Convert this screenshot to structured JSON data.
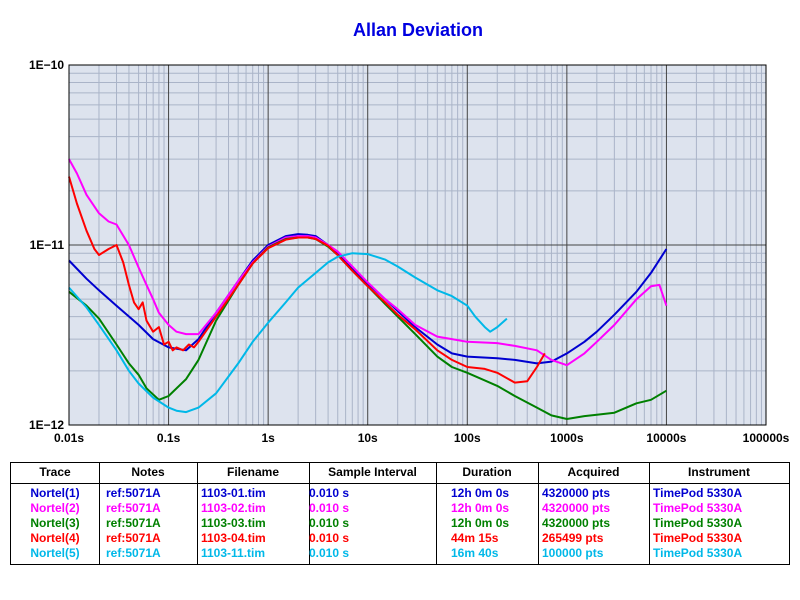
{
  "chart_data": {
    "type": "line",
    "title": "Allan Deviation",
    "x_scale": "log",
    "y_scale": "log",
    "xlim": [
      0.01,
      100000
    ],
    "ylim": [
      1e-12,
      1e-10
    ],
    "grid": true,
    "background_color": "#dde3ee",
    "grid_major_color": "#444444",
    "grid_minor_color": "#aab4c8",
    "x_ticks": [
      {
        "value": 0.01,
        "label": "0.01s"
      },
      {
        "value": 0.1,
        "label": "0.1s"
      },
      {
        "value": 1,
        "label": "1s"
      },
      {
        "value": 10,
        "label": "10s"
      },
      {
        "value": 100,
        "label": "100s"
      },
      {
        "value": 1000,
        "label": "1000s"
      },
      {
        "value": 10000,
        "label": "10000s"
      },
      {
        "value": 100000,
        "label": "100000s"
      }
    ],
    "y_ticks": [
      {
        "value": 1e-10,
        "label": "1E−10"
      },
      {
        "value": 1e-11,
        "label": "1E−11"
      },
      {
        "value": 1e-12,
        "label": "1E−12"
      }
    ],
    "series": [
      {
        "name": "Nortel(1)",
        "color": "#0000d0",
        "points": [
          [
            0.01,
            8.2e-12
          ],
          [
            0.015,
            6.5e-12
          ],
          [
            0.02,
            5.6e-12
          ],
          [
            0.03,
            4.6e-12
          ],
          [
            0.05,
            3.6e-12
          ],
          [
            0.07,
            3e-12
          ],
          [
            0.1,
            2.7e-12
          ],
          [
            0.15,
            2.6e-12
          ],
          [
            0.2,
            3e-12
          ],
          [
            0.3,
            4.2e-12
          ],
          [
            0.5,
            6.3e-12
          ],
          [
            0.7,
            8.2e-12
          ],
          [
            1,
            1e-11
          ],
          [
            1.5,
            1.12e-11
          ],
          [
            2,
            1.15e-11
          ],
          [
            2.5,
            1.14e-11
          ],
          [
            3,
            1.12e-11
          ],
          [
            4,
            1e-11
          ],
          [
            5,
            8.9e-12
          ],
          [
            7,
            7.4e-12
          ],
          [
            10,
            6.1e-12
          ],
          [
            15,
            5e-12
          ],
          [
            20,
            4.3e-12
          ],
          [
            30,
            3.5e-12
          ],
          [
            50,
            2.8e-12
          ],
          [
            70,
            2.5e-12
          ],
          [
            100,
            2.4e-12
          ],
          [
            200,
            2.35e-12
          ],
          [
            300,
            2.3e-12
          ],
          [
            500,
            2.2e-12
          ],
          [
            700,
            2.25e-12
          ],
          [
            1000,
            2.5e-12
          ],
          [
            1500,
            2.9e-12
          ],
          [
            2000,
            3.3e-12
          ],
          [
            3000,
            4.1e-12
          ],
          [
            5000,
            5.5e-12
          ],
          [
            7000,
            7e-12
          ],
          [
            10000,
            9.5e-12
          ]
        ]
      },
      {
        "name": "Nortel(2)",
        "color": "#ff00ff",
        "points": [
          [
            0.01,
            3e-11
          ],
          [
            0.012,
            2.5e-11
          ],
          [
            0.015,
            1.9e-11
          ],
          [
            0.02,
            1.5e-11
          ],
          [
            0.025,
            1.35e-11
          ],
          [
            0.03,
            1.3e-11
          ],
          [
            0.04,
            1e-11
          ],
          [
            0.05,
            7.5e-12
          ],
          [
            0.06,
            6e-12
          ],
          [
            0.07,
            5e-12
          ],
          [
            0.08,
            4.2e-12
          ],
          [
            0.1,
            3.6e-12
          ],
          [
            0.12,
            3.3e-12
          ],
          [
            0.15,
            3.2e-12
          ],
          [
            0.2,
            3.2e-12
          ],
          [
            0.3,
            4.2e-12
          ],
          [
            0.5,
            6.3e-12
          ],
          [
            0.7,
            8e-12
          ],
          [
            1,
            9.8e-12
          ],
          [
            1.5,
            1.1e-11
          ],
          [
            2,
            1.12e-11
          ],
          [
            2.5,
            1.12e-11
          ],
          [
            3,
            1.1e-11
          ],
          [
            4,
            1e-11
          ],
          [
            5,
            9.2e-12
          ],
          [
            7,
            7.6e-12
          ],
          [
            10,
            6.2e-12
          ],
          [
            15,
            5e-12
          ],
          [
            20,
            4.4e-12
          ],
          [
            30,
            3.6e-12
          ],
          [
            50,
            3.1e-12
          ],
          [
            70,
            3e-12
          ],
          [
            100,
            2.9e-12
          ],
          [
            200,
            2.85e-12
          ],
          [
            300,
            2.75e-12
          ],
          [
            500,
            2.6e-12
          ],
          [
            700,
            2.3e-12
          ],
          [
            1000,
            2.15e-12
          ],
          [
            1500,
            2.5e-12
          ],
          [
            2000,
            2.9e-12
          ],
          [
            3000,
            3.6e-12
          ],
          [
            5000,
            5e-12
          ],
          [
            7000,
            5.9e-12
          ],
          [
            8500,
            6e-12
          ],
          [
            10000,
            4.6e-12
          ]
        ]
      },
      {
        "name": "Nortel(3)",
        "color": "#008000",
        "points": [
          [
            0.01,
            5.5e-12
          ],
          [
            0.015,
            4.6e-12
          ],
          [
            0.02,
            3.9e-12
          ],
          [
            0.03,
            2.8e-12
          ],
          [
            0.04,
            2.2e-12
          ],
          [
            0.05,
            1.9e-12
          ],
          [
            0.06,
            1.6e-12
          ],
          [
            0.08,
            1.38e-12
          ],
          [
            0.1,
            1.45e-12
          ],
          [
            0.15,
            1.8e-12
          ],
          [
            0.2,
            2.3e-12
          ],
          [
            0.3,
            3.8e-12
          ],
          [
            0.5,
            6e-12
          ],
          [
            0.7,
            7.9e-12
          ],
          [
            1,
            9.7e-12
          ],
          [
            1.5,
            1.08e-11
          ],
          [
            2,
            1.1e-11
          ],
          [
            2.5,
            1.1e-11
          ],
          [
            3,
            1.08e-11
          ],
          [
            4,
            9.8e-12
          ],
          [
            5,
            8.8e-12
          ],
          [
            7,
            7.2e-12
          ],
          [
            10,
            5.9e-12
          ],
          [
            15,
            4.7e-12
          ],
          [
            20,
            4e-12
          ],
          [
            30,
            3.2e-12
          ],
          [
            50,
            2.4e-12
          ],
          [
            70,
            2.1e-12
          ],
          [
            100,
            1.95e-12
          ],
          [
            200,
            1.65e-12
          ],
          [
            300,
            1.45e-12
          ],
          [
            500,
            1.25e-12
          ],
          [
            700,
            1.13e-12
          ],
          [
            1000,
            1.08e-12
          ],
          [
            1500,
            1.12e-12
          ],
          [
            2000,
            1.14e-12
          ],
          [
            3000,
            1.17e-12
          ],
          [
            5000,
            1.32e-12
          ],
          [
            7000,
            1.38e-12
          ],
          [
            10000,
            1.55e-12
          ]
        ]
      },
      {
        "name": "Nortel(4)",
        "color": "#ff0000",
        "points": [
          [
            0.01,
            2.4e-11
          ],
          [
            0.012,
            1.7e-11
          ],
          [
            0.015,
            1.2e-11
          ],
          [
            0.018,
            9.5e-12
          ],
          [
            0.02,
            8.8e-12
          ],
          [
            0.025,
            9.5e-12
          ],
          [
            0.03,
            1e-11
          ],
          [
            0.035,
            8e-12
          ],
          [
            0.04,
            6e-12
          ],
          [
            0.045,
            4.8e-12
          ],
          [
            0.05,
            4.4e-12
          ],
          [
            0.055,
            4.8e-12
          ],
          [
            0.06,
            3.8e-12
          ],
          [
            0.07,
            3.3e-12
          ],
          [
            0.08,
            3.5e-12
          ],
          [
            0.09,
            2.8e-12
          ],
          [
            0.1,
            2.9e-12
          ],
          [
            0.11,
            2.6e-12
          ],
          [
            0.12,
            2.7e-12
          ],
          [
            0.14,
            2.6e-12
          ],
          [
            0.16,
            2.8e-12
          ],
          [
            0.18,
            2.7e-12
          ],
          [
            0.2,
            2.9e-12
          ],
          [
            0.3,
            4e-12
          ],
          [
            0.5,
            6e-12
          ],
          [
            0.7,
            7.9e-12
          ],
          [
            1,
            9.6e-12
          ],
          [
            1.5,
            1.07e-11
          ],
          [
            2,
            1.1e-11
          ],
          [
            2.5,
            1.1e-11
          ],
          [
            3,
            1.08e-11
          ],
          [
            4,
            9.9e-12
          ],
          [
            5,
            8.8e-12
          ],
          [
            7,
            7.2e-12
          ],
          [
            10,
            5.9e-12
          ],
          [
            15,
            4.8e-12
          ],
          [
            20,
            4.1e-12
          ],
          [
            30,
            3.4e-12
          ],
          [
            50,
            2.6e-12
          ],
          [
            70,
            2.3e-12
          ],
          [
            100,
            2.1e-12
          ],
          [
            150,
            2.05e-12
          ],
          [
            200,
            1.95e-12
          ],
          [
            300,
            1.72e-12
          ],
          [
            400,
            1.75e-12
          ],
          [
            500,
            2.1e-12
          ],
          [
            600,
            2.5e-12
          ]
        ]
      },
      {
        "name": "Nortel(5)",
        "color": "#00b8e8",
        "points": [
          [
            0.01,
            5.8e-12
          ],
          [
            0.015,
            4.5e-12
          ],
          [
            0.02,
            3.6e-12
          ],
          [
            0.03,
            2.6e-12
          ],
          [
            0.04,
            2e-12
          ],
          [
            0.05,
            1.7e-12
          ],
          [
            0.07,
            1.42e-12
          ],
          [
            0.1,
            1.25e-12
          ],
          [
            0.12,
            1.2e-12
          ],
          [
            0.15,
            1.18e-12
          ],
          [
            0.2,
            1.25e-12
          ],
          [
            0.3,
            1.5e-12
          ],
          [
            0.5,
            2.2e-12
          ],
          [
            0.7,
            2.9e-12
          ],
          [
            1,
            3.7e-12
          ],
          [
            1.5,
            4.8e-12
          ],
          [
            2,
            5.8e-12
          ],
          [
            3,
            7e-12
          ],
          [
            4,
            8e-12
          ],
          [
            5,
            8.6e-12
          ],
          [
            7,
            9e-12
          ],
          [
            10,
            8.9e-12
          ],
          [
            15,
            8.3e-12
          ],
          [
            20,
            7.6e-12
          ],
          [
            30,
            6.6e-12
          ],
          [
            50,
            5.6e-12
          ],
          [
            70,
            5.2e-12
          ],
          [
            100,
            4.6e-12
          ],
          [
            120,
            4e-12
          ],
          [
            150,
            3.5e-12
          ],
          [
            170,
            3.3e-12
          ],
          [
            200,
            3.5e-12
          ],
          [
            250,
            3.9e-12
          ]
        ]
      }
    ]
  },
  "legend_table": {
    "headers": [
      "Trace",
      "Notes",
      "Filename",
      "Sample Interval",
      "Duration",
      "Acquired",
      "Instrument"
    ],
    "rows": [
      {
        "color": "#0000d0",
        "cells": [
          "Nortel(1)",
          "ref:5071A",
          "1103-01.tim",
          "0.010 s",
          "12h 0m 0s",
          "4320000 pts",
          "TimePod 5330A"
        ]
      },
      {
        "color": "#ff00ff",
        "cells": [
          "Nortel(2)",
          "ref:5071A",
          "1103-02.tim",
          "0.010 s",
          "12h 0m 0s",
          "4320000 pts",
          "TimePod 5330A"
        ]
      },
      {
        "color": "#008000",
        "cells": [
          "Nortel(3)",
          "ref:5071A",
          "1103-03.tim",
          "0.010 s",
          "12h 0m 0s",
          "4320000 pts",
          "TimePod 5330A"
        ]
      },
      {
        "color": "#ff0000",
        "cells": [
          "Nortel(4)",
          "ref:5071A",
          "1103-04.tim",
          "0.010 s",
          "44m 15s",
          "265499 pts",
          "TimePod 5330A"
        ]
      },
      {
        "color": "#00b8e8",
        "cells": [
          "Nortel(5)",
          "ref:5071A",
          "1103-11.tim",
          "0.010 s",
          "16m 40s",
          "100000 pts",
          "TimePod 5330A"
        ]
      }
    ]
  }
}
